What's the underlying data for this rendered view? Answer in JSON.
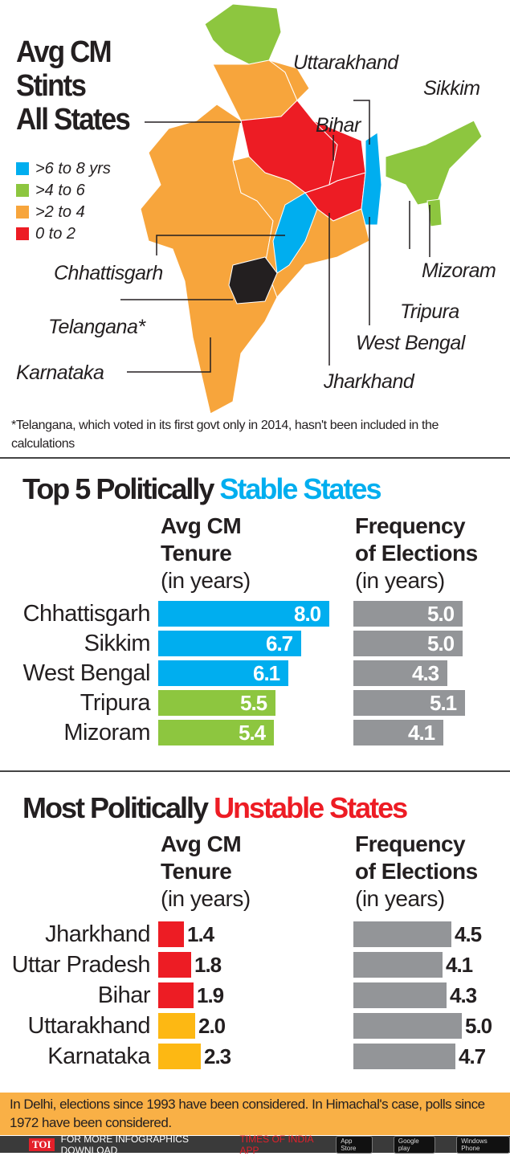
{
  "map": {
    "title_lines": [
      "Avg CM",
      "Stints",
      "All States"
    ],
    "legend": [
      {
        "label": ">6 to 8 yrs",
        "color": "#00aeef"
      },
      {
        "label": ">4 to 6",
        "color": "#8dc63f"
      },
      {
        "label": ">2 to 4",
        "color": "#f7a53c"
      },
      {
        "label": "0 to 2",
        "color": "#ed1c24"
      }
    ],
    "no_data_color": "#231f20",
    "labels": [
      "Uttarakhand",
      "Sikkim",
      "Bihar",
      "Chhattisgarh",
      "Telangana*",
      "Karnataka",
      "Mizoram",
      "Tripura",
      "West Bengal",
      "Jharkhand"
    ],
    "footnote": "*Telangana, which voted in its first govt only in 2014, hasn't been included in the calculations"
  },
  "chart_data": [
    {
      "type": "bar",
      "title": "Top 5 Politically Stable States",
      "title_parts": [
        "Top 5 Politically ",
        "Stable States"
      ],
      "title_accent_color": "#00aeef",
      "categories": [
        "Chhattisgarh",
        "Sikkim",
        "West Bengal",
        "Tripura",
        "Mizoram"
      ],
      "series": [
        {
          "name": "Avg CM Tenure (in years)",
          "header": [
            "Avg CM",
            "Tenure",
            "(in years)"
          ],
          "values": [
            8.0,
            6.7,
            6.1,
            5.5,
            5.4
          ],
          "colors": [
            "#00aeef",
            "#00aeef",
            "#00aeef",
            "#8dc63f",
            "#8dc63f"
          ]
        },
        {
          "name": "Frequency of Elections (in years)",
          "header": [
            "Frequency",
            "of Elections",
            "(in years)"
          ],
          "values": [
            5.0,
            5.0,
            4.3,
            5.1,
            4.1
          ],
          "colors": [
            "#939598",
            "#939598",
            "#939598",
            "#939598",
            "#939598"
          ]
        }
      ],
      "labels_inside": true
    },
    {
      "type": "bar",
      "title": "Most Politically Unstable States",
      "title_parts": [
        "Most Politically ",
        "Unstable States"
      ],
      "title_accent_color": "#ed1c24",
      "categories": [
        "Jharkhand",
        "Uttar Pradesh",
        "Bihar",
        "Uttarakhand",
        "Karnataka"
      ],
      "series": [
        {
          "name": "Avg CM Tenure (in years)",
          "header": [
            "Avg CM",
            "Tenure",
            "(in years)"
          ],
          "values": [
            1.4,
            1.8,
            1.9,
            2.0,
            2.3
          ],
          "colors": [
            "#ed1c24",
            "#ed1c24",
            "#ed1c24",
            "#fdb813",
            "#fdb813"
          ]
        },
        {
          "name": "Frequency of Elections (in years)",
          "header": [
            "Frequency",
            "of Elections",
            "(in years)"
          ],
          "values": [
            4.5,
            4.1,
            4.3,
            5.0,
            4.7
          ],
          "colors": [
            "#939598",
            "#939598",
            "#939598",
            "#939598",
            "#939598"
          ]
        }
      ],
      "labels_inside": false
    }
  ],
  "note": "In Delhi, elections since 1993 have been considered. In Himachal's case, polls since 1972 have been considered.",
  "footer": {
    "brand": "TOI",
    "text": "FOR MORE INFOGRAPHICS DOWNLOAD",
    "app": "TIMES OF INDIA APP",
    "badges": [
      "App Store",
      "Google play",
      "Windows Phone"
    ]
  }
}
